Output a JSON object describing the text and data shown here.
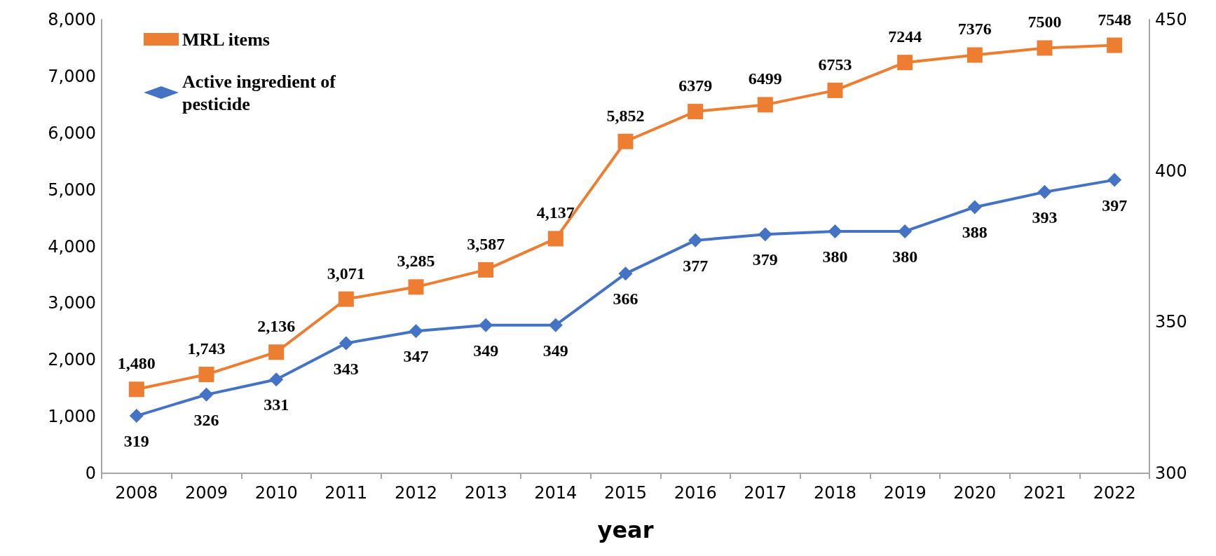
{
  "chart_data": {
    "type": "line",
    "xlabel": "year",
    "categories": [
      "2008",
      "2009",
      "2010",
      "2011",
      "2012",
      "2013",
      "2014",
      "2015",
      "2016",
      "2017",
      "2018",
      "2019",
      "2020",
      "2021",
      "2022"
    ],
    "series": [
      {
        "name": "MRL items",
        "color": "#ed7d31",
        "marker": "square",
        "values": [
          1480,
          1743,
          2136,
          3071,
          3285,
          3587,
          4137,
          5852,
          6379,
          6499,
          6753,
          7244,
          7376,
          7500,
          7548
        ],
        "value_labels": [
          "1,480",
          "1,743",
          "2,136",
          "3,071",
          "3,285",
          "3,587",
          "4,137",
          "5,852",
          "6379",
          "6499",
          "6753",
          "7244",
          "7376",
          "7500",
          "7548"
        ]
      },
      {
        "name": "Active ingredient of pesticide",
        "color": "#4472c4",
        "marker": "diamond",
        "axis": "y2",
        "values": [
          319,
          326,
          331,
          343,
          347,
          349,
          349,
          366,
          377,
          379,
          380,
          380,
          388,
          393,
          397
        ],
        "data_labels": true
      }
    ],
    "ylim": [
      0,
      8000
    ],
    "yticks": [
      0,
      {
        "value": 1000,
        "label": "1,000"
      },
      {
        "value": 2000,
        "label": "2,000"
      },
      {
        "value": 3000,
        "label": "3,000"
      },
      {
        "value": 4000,
        "label": "4,000"
      },
      {
        "value": 5000,
        "label": "5,000"
      },
      {
        "value": 6000,
        "label": "6,000"
      },
      {
        "value": 7000,
        "label": "7,000"
      },
      {
        "value": 8000,
        "label": "8,000"
      }
    ],
    "y2lim": [
      300,
      450
    ],
    "y2ticks": [
      300,
      350,
      400,
      450
    ],
    "grid": false,
    "legend": "top left",
    "line_style": "solid"
  }
}
